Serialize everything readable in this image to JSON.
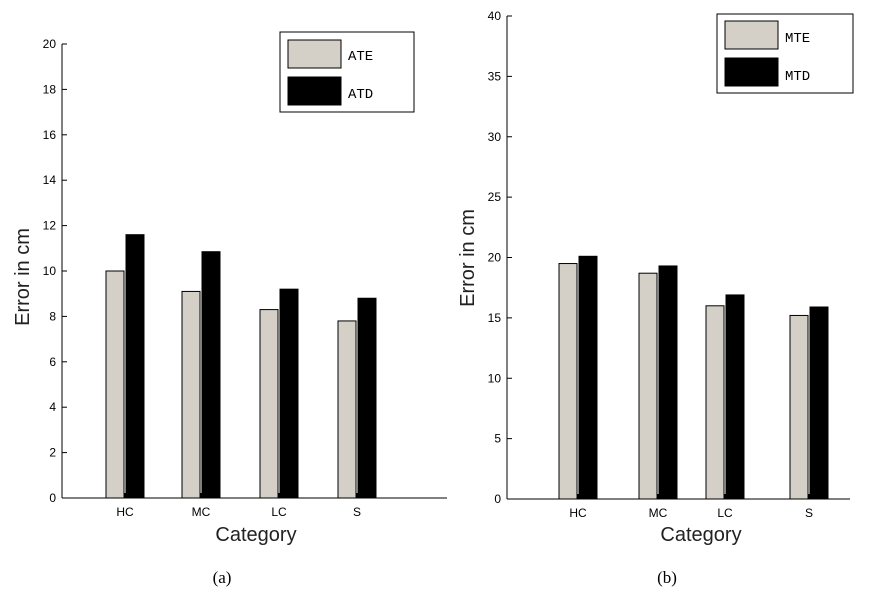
{
  "chart_data": [
    {
      "type": "bar",
      "categories": [
        "HC",
        "MC",
        "LC",
        "S"
      ],
      "series": [
        {
          "name": "ATE",
          "values": [
            10.0,
            9.1,
            8.3,
            7.8
          ],
          "color": "#d4d0c8"
        },
        {
          "name": "ATD",
          "values": [
            11.6,
            10.85,
            9.2,
            8.8
          ],
          "color": "#000000"
        }
      ],
      "xlabel": "Category",
      "ylabel": "Error in cm",
      "ylim": [
        0,
        20
      ],
      "yticks": [
        0,
        2,
        4,
        6,
        8,
        10,
        12,
        14,
        16,
        18,
        20
      ],
      "grid": false,
      "legend_position": "top-right",
      "caption": "(a)"
    },
    {
      "type": "bar",
      "categories": [
        "HC",
        "MC",
        "LC",
        "S"
      ],
      "series": [
        {
          "name": "MTE",
          "values": [
            19.5,
            18.7,
            16.0,
            15.2
          ],
          "color": "#d4d0c8"
        },
        {
          "name": "MTD",
          "values": [
            20.1,
            19.3,
            16.9,
            15.9
          ],
          "color": "#000000"
        }
      ],
      "xlabel": "Category",
      "ylabel": "Error in cm",
      "ylim": [
        0,
        40
      ],
      "yticks": [
        0,
        5,
        10,
        15,
        20,
        25,
        30,
        35,
        40
      ],
      "grid": false,
      "legend_position": "top-right",
      "caption": "(b)"
    }
  ]
}
